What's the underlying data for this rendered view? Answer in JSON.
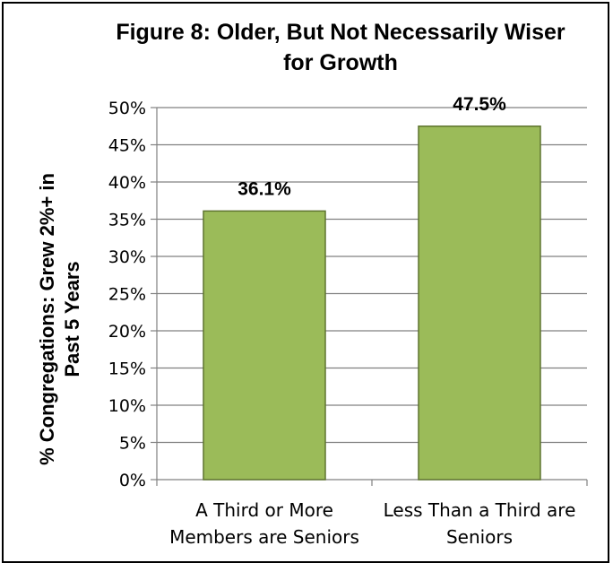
{
  "chart_data": {
    "type": "bar",
    "title_lines": [
      "Figure 8: Older, But Not Necessarily Wiser",
      "for Growth"
    ],
    "ylabel_lines": [
      "% Congregations: Grew 2%+ in",
      "Past 5 Years"
    ],
    "xlabel": "",
    "categories": [
      {
        "lines": [
          "A Third or More",
          "Members are Seniors"
        ]
      },
      {
        "lines": [
          "Less Than a Third are",
          "Seniors"
        ]
      }
    ],
    "values": [
      36.1,
      47.5
    ],
    "data_labels": [
      "36.1%",
      "47.5%"
    ],
    "ylim": [
      0,
      50
    ],
    "yticks": [
      0,
      5,
      10,
      15,
      20,
      25,
      30,
      35,
      40,
      45,
      50
    ],
    "ytick_labels": [
      "0%",
      "5%",
      "10%",
      "15%",
      "20%",
      "25%",
      "30%",
      "35%",
      "40%",
      "45%",
      "50%"
    ],
    "grid": true,
    "legend": "none",
    "colors": {
      "bar_fill": "#9bbb59",
      "bar_stroke": "#5f7530",
      "grid": "#808080",
      "axis": "#808080"
    }
  }
}
